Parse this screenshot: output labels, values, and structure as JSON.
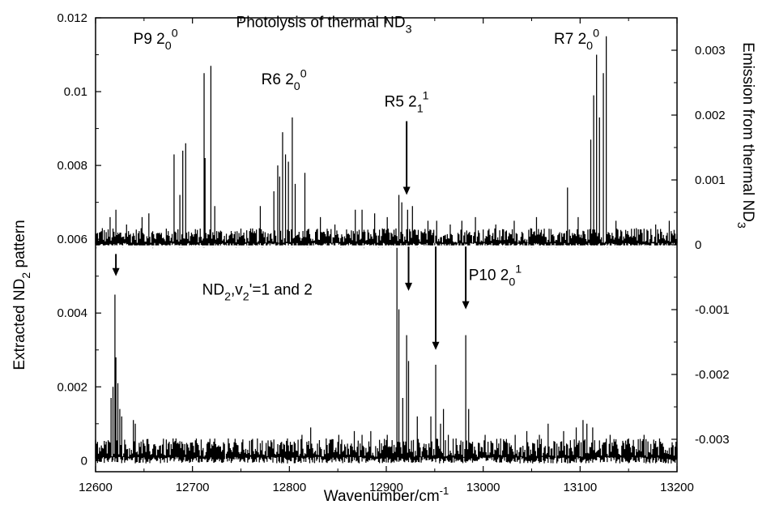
{
  "chart_data": {
    "type": "line",
    "xlabel": "Wavenumber/cm",
    "xlabel_sup": "-1",
    "xlim": [
      12600,
      13200
    ],
    "x_ticks": [
      12600,
      12700,
      12800,
      12900,
      13000,
      13100,
      13200
    ],
    "left_axis": {
      "label_parts": [
        "Extracted ND",
        "2",
        " pattern"
      ],
      "ylim": [
        -0.0003,
        0.012
      ],
      "ticks": [
        {
          "value": 0,
          "label": "0"
        },
        {
          "value": 0.002,
          "label": "0.002"
        },
        {
          "value": 0.004,
          "label": "0.004"
        },
        {
          "value": 0.006,
          "label": "0.006"
        },
        {
          "value": 0.008,
          "label": "0.008"
        },
        {
          "value": 0.01,
          "label": "0.01"
        },
        {
          "value": 0.012,
          "label": "0.012"
        }
      ]
    },
    "right_axis": {
      "label_parts": [
        "Emission from thermal ND",
        "3"
      ],
      "ylim": [
        -0.0035,
        0.0035
      ],
      "ticks": [
        {
          "value": 0.003,
          "label": "0.003"
        },
        {
          "value": 0.002,
          "label": "0.002"
        },
        {
          "value": 0.001,
          "label": "0.001"
        },
        {
          "value": 0,
          "label": "0"
        },
        {
          "value": -0.001,
          "label": "-0.001"
        },
        {
          "value": -0.002,
          "label": "-0.002"
        },
        {
          "value": -0.003,
          "label": "-0.003"
        }
      ]
    },
    "divider_y": 0.0058,
    "series": [
      {
        "role": "upper",
        "baseline": 0.0059,
        "noise": 0.0004,
        "peaks": [
          [
            12607,
            0.0063
          ],
          [
            12615,
            0.0066
          ],
          [
            12621,
            0.0068
          ],
          [
            12632,
            0.0064
          ],
          [
            12648,
            0.0066
          ],
          [
            12655,
            0.0067
          ],
          [
            12681,
            0.0083
          ],
          [
            12687,
            0.0072
          ],
          [
            12690,
            0.0084
          ],
          [
            12693,
            0.0086
          ],
          [
            12712,
            0.0105
          ],
          [
            12713,
            0.0082
          ],
          [
            12719,
            0.0107
          ],
          [
            12723,
            0.0069
          ],
          [
            12770,
            0.0069
          ],
          [
            12784,
            0.0073
          ],
          [
            12788,
            0.008
          ],
          [
            12790,
            0.0077
          ],
          [
            12793,
            0.0089
          ],
          [
            12796,
            0.0083
          ],
          [
            12799,
            0.0081
          ],
          [
            12803,
            0.0093
          ],
          [
            12806,
            0.0075
          ],
          [
            12816,
            0.0078
          ],
          [
            12832,
            0.0066
          ],
          [
            12847,
            0.0064
          ],
          [
            12868,
            0.0068
          ],
          [
            12875,
            0.0068
          ],
          [
            12888,
            0.0067
          ],
          [
            12901,
            0.0066
          ],
          [
            12913,
            0.0072
          ],
          [
            12916,
            0.007
          ],
          [
            12922,
            0.0068
          ],
          [
            12927,
            0.0069
          ],
          [
            12943,
            0.0065
          ],
          [
            12952,
            0.0065
          ],
          [
            12966,
            0.0064
          ],
          [
            12978,
            0.0065
          ],
          [
            12992,
            0.0066
          ],
          [
            13013,
            0.0064
          ],
          [
            13032,
            0.0065
          ],
          [
            13055,
            0.0066
          ],
          [
            13087,
            0.0074
          ],
          [
            13098,
            0.0066
          ],
          [
            13111,
            0.0087
          ],
          [
            13114,
            0.0099
          ],
          [
            13117,
            0.011
          ],
          [
            13120,
            0.0093
          ],
          [
            13124,
            0.0105
          ],
          [
            13127,
            0.0115
          ],
          [
            13137,
            0.0065
          ],
          [
            13158,
            0.0063
          ],
          [
            13178,
            0.0064
          ],
          [
            13192,
            0.0065
          ]
        ]
      },
      {
        "role": "lower",
        "baseline": 0.0001,
        "noise": 0.0005,
        "peaks": [
          [
            12616,
            0.0017
          ],
          [
            12618,
            0.002
          ],
          [
            12620,
            0.0045
          ],
          [
            12621,
            0.0028
          ],
          [
            12623,
            0.0021
          ],
          [
            12625,
            0.0014
          ],
          [
            12627,
            0.0012
          ],
          [
            12639,
            0.0011
          ],
          [
            12641,
            0.001
          ],
          [
            12651,
            0.0004
          ],
          [
            12666,
            0.0004
          ],
          [
            12683,
            0.0006
          ],
          [
            12701,
            0.0004
          ],
          [
            12717,
            0.0005
          ],
          [
            12737,
            0.0006
          ],
          [
            12751,
            0.0005
          ],
          [
            12767,
            0.0006
          ],
          [
            12782,
            0.0005
          ],
          [
            12798,
            0.0006
          ],
          [
            12813,
            0.0007
          ],
          [
            12822,
            0.0009
          ],
          [
            12838,
            0.0006
          ],
          [
            12851,
            0.0007
          ],
          [
            12867,
            0.0008
          ],
          [
            12875,
            0.0007
          ],
          [
            12884,
            0.0008
          ],
          [
            12901,
            0.0007
          ],
          [
            12911,
            0.0059
          ],
          [
            12913,
            0.0041
          ],
          [
            12917,
            0.0017
          ],
          [
            12921,
            0.0034
          ],
          [
            12923,
            0.0027
          ],
          [
            12932,
            0.0012
          ],
          [
            12946,
            0.0012
          ],
          [
            12951,
            0.0026
          ],
          [
            12956,
            0.001
          ],
          [
            12959,
            0.0014
          ],
          [
            12964,
            0.0007
          ],
          [
            12972,
            0.0006
          ],
          [
            12982,
            0.0034
          ],
          [
            12985,
            0.0014
          ],
          [
            13002,
            0.0007
          ],
          [
            13018,
            0.0006
          ],
          [
            13033,
            0.0007
          ],
          [
            13045,
            0.0008
          ],
          [
            13058,
            0.0007
          ],
          [
            13067,
            0.001
          ],
          [
            13083,
            0.0008
          ],
          [
            13096,
            0.0009
          ],
          [
            13103,
            0.0011
          ],
          [
            13107,
            0.001
          ],
          [
            13113,
            0.0009
          ],
          [
            13131,
            0.0007
          ],
          [
            13150,
            0.0006
          ],
          [
            13166,
            0.0007
          ],
          [
            13182,
            0.0006
          ],
          [
            13195,
            0.0005
          ]
        ]
      }
    ],
    "arrows": [
      {
        "x": 12921,
        "y_top": 0.0092,
        "y_tip": 0.0072
      },
      {
        "x": 12621,
        "y_top": 0.0056,
        "y_tip": 0.005
      },
      {
        "x": 12923,
        "y_top": 0.0058,
        "y_tip": 0.0046
      },
      {
        "x": 12951,
        "y_top": 0.0058,
        "y_tip": 0.003
      },
      {
        "x": 12982,
        "y_top": 0.0058,
        "y_tip": 0.0041
      }
    ],
    "annotations": [
      {
        "id": "title",
        "segments": [
          {
            "t": "Photolysis of thermal ND"
          },
          {
            "t": "3",
            "s": "sub"
          }
        ],
        "x": 12745,
        "y": 0.01175
      },
      {
        "id": "p9",
        "segments": [
          {
            "t": "P9  2"
          },
          {
            "t": "0",
            "s": "sub"
          },
          {
            "t": "0",
            "s": "sup"
          }
        ],
        "x": 12639,
        "y": 0.0113
      },
      {
        "id": "r6",
        "segments": [
          {
            "t": "R6  2"
          },
          {
            "t": "0",
            "s": "sub"
          },
          {
            "t": "0",
            "s": "sup"
          }
        ],
        "x": 12771,
        "y": 0.0102
      },
      {
        "id": "r5",
        "segments": [
          {
            "t": "R5  2"
          },
          {
            "t": "1",
            "s": "sub"
          },
          {
            "t": "1",
            "s": "sup"
          }
        ],
        "x": 12898,
        "y": 0.0096
      },
      {
        "id": "r7",
        "segments": [
          {
            "t": "R7  2"
          },
          {
            "t": "0",
            "s": "sub"
          },
          {
            "t": "0",
            "s": "sup"
          }
        ],
        "x": 13073,
        "y": 0.0113
      },
      {
        "id": "nd2",
        "segments": [
          {
            "t": "ND"
          },
          {
            "t": "2",
            "s": "sub"
          },
          {
            "t": ",v"
          },
          {
            "t": "2",
            "s": "sub"
          },
          {
            "t": "'=1 and 2"
          }
        ],
        "x": 12710,
        "y": 0.0045
      },
      {
        "id": "p10",
        "segments": [
          {
            "t": "P10  2"
          },
          {
            "t": "0",
            "s": "sub"
          },
          {
            "t": "1",
            "s": "sup"
          }
        ],
        "x": 12985,
        "y": 0.0049
      }
    ]
  }
}
